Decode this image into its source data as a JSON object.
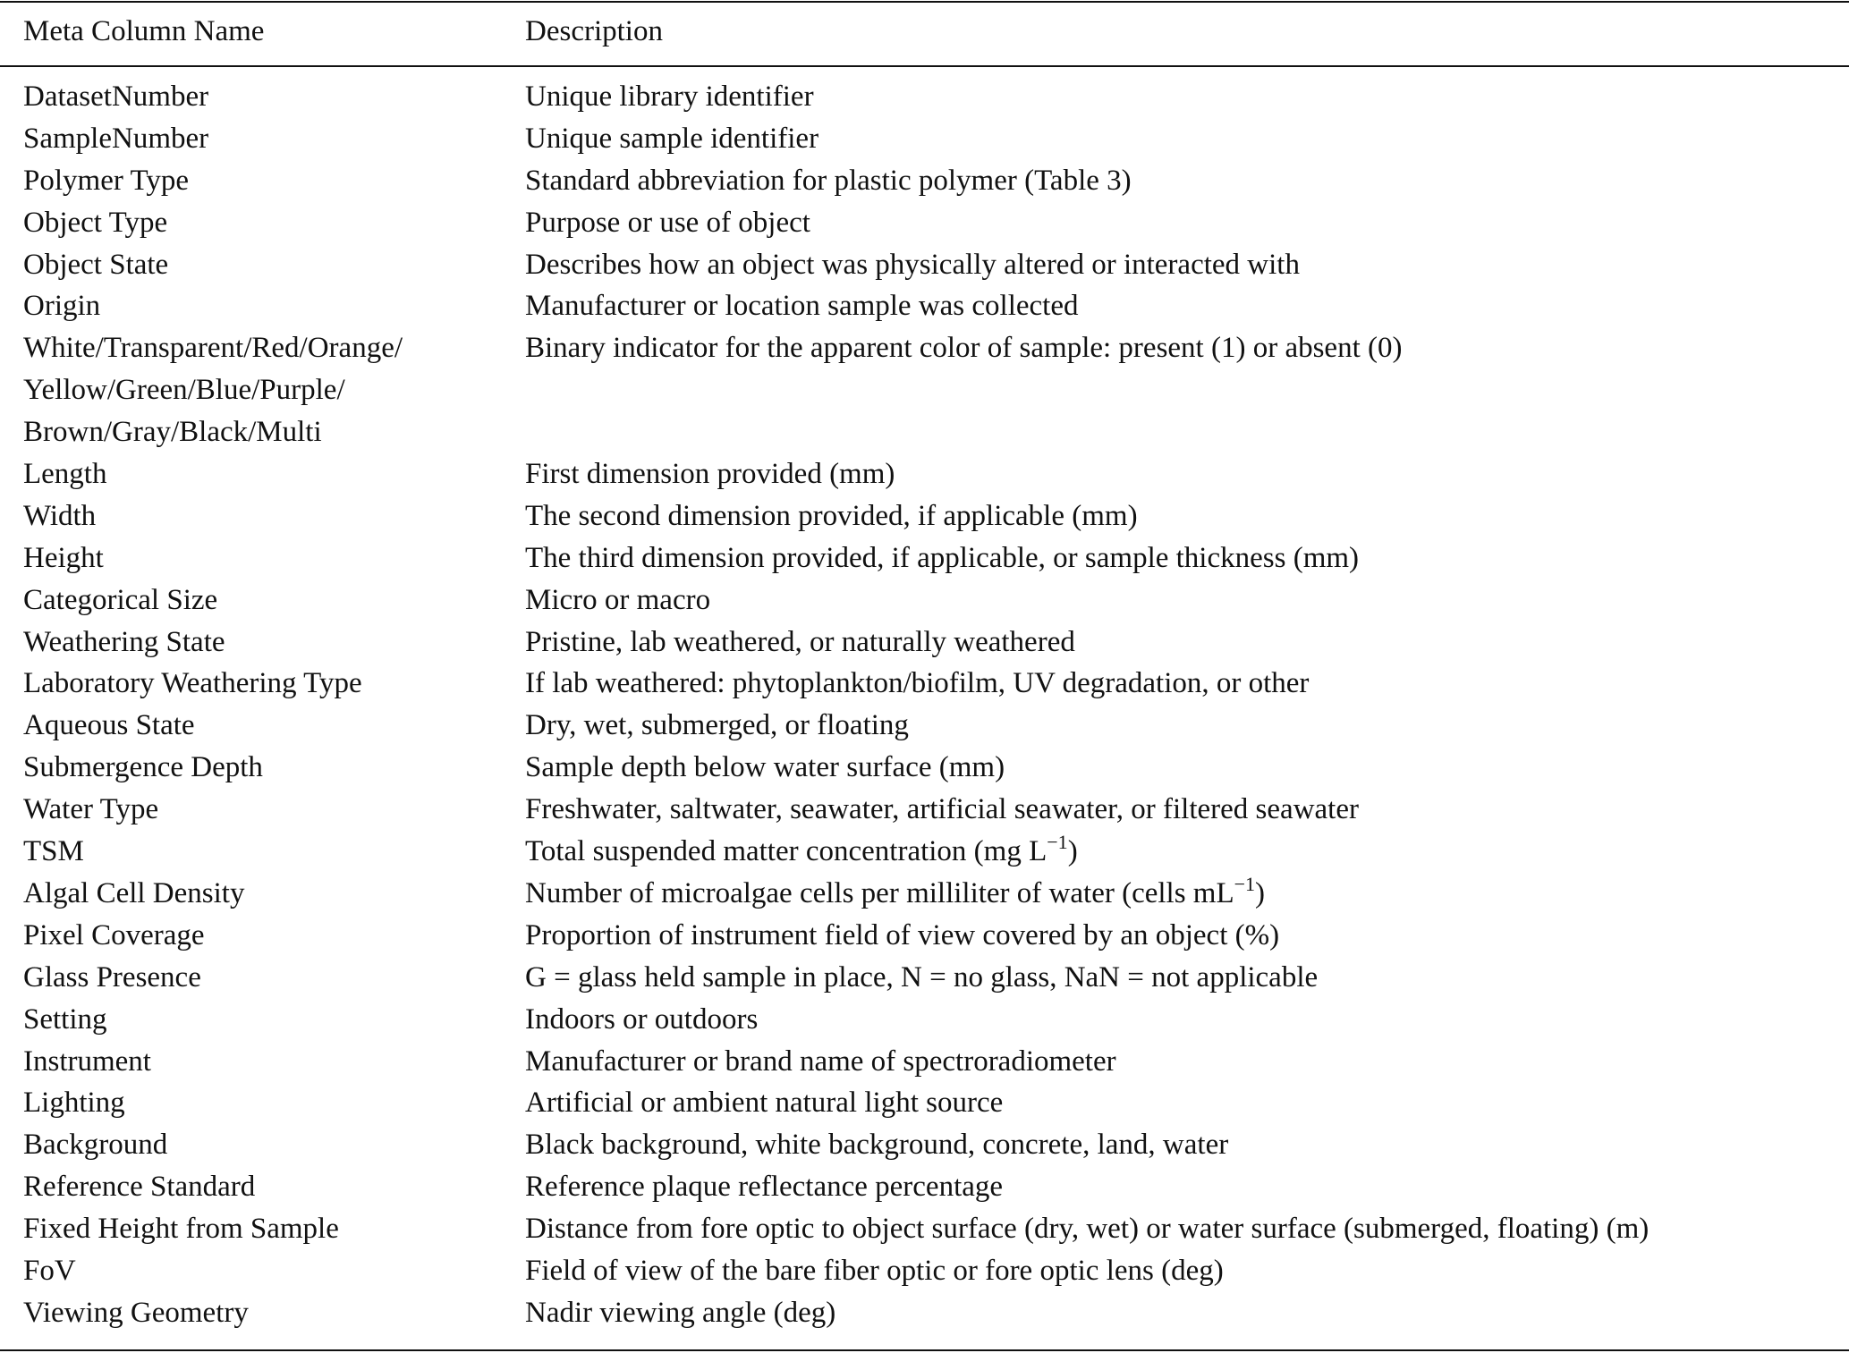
{
  "header": {
    "col1": "Meta Column Name",
    "col2": "Description"
  },
  "rows": [
    {
      "name": [
        "DatasetNumber"
      ],
      "desc": "Unique library identifier"
    },
    {
      "name": [
        "SampleNumber"
      ],
      "desc": "Unique sample identifier"
    },
    {
      "name": [
        "Polymer Type"
      ],
      "desc": "Standard abbreviation for plastic polymer (Table 3)"
    },
    {
      "name": [
        "Object Type"
      ],
      "desc": "Purpose or use of object"
    },
    {
      "name": [
        "Object State"
      ],
      "desc": "Describes how an object was physically altered or interacted with"
    },
    {
      "name": [
        "Origin"
      ],
      "desc": "Manufacturer or location sample was collected"
    },
    {
      "name": [
        "White/Transparent/Red/Orange/",
        "Yellow/Green/Blue/Purple/",
        "Brown/Gray/Black/Multi"
      ],
      "desc": "Binary indicator for the apparent color of sample: present (1) or absent (0)"
    },
    {
      "name": [
        "Length"
      ],
      "desc": "First dimension provided (mm)"
    },
    {
      "name": [
        "Width"
      ],
      "desc": "The second dimension provided, if applicable (mm)"
    },
    {
      "name": [
        "Height"
      ],
      "desc": "The third dimension provided, if applicable, or sample thickness (mm)"
    },
    {
      "name": [
        "Categorical Size"
      ],
      "desc": "Micro or macro"
    },
    {
      "name": [
        "Weathering State"
      ],
      "desc": "Pristine, lab weathered, or naturally weathered"
    },
    {
      "name": [
        "Laboratory Weathering Type"
      ],
      "desc": "If lab weathered: phytoplankton/biofilm, UV degradation, or other"
    },
    {
      "name": [
        "Aqueous State"
      ],
      "desc": "Dry, wet, submerged, or floating"
    },
    {
      "name": [
        "Submergence Depth"
      ],
      "desc": "Sample depth below water surface (mm)"
    },
    {
      "name": [
        "Water Type"
      ],
      "desc": "Freshwater, saltwater, seawater, artificial seawater, or filtered seawater"
    },
    {
      "name": [
        "TSM"
      ],
      "desc": "Total suspended matter concentration (mg L",
      "sup": "−1",
      "tail": ")"
    },
    {
      "name": [
        "Algal Cell Density"
      ],
      "desc": "Number of microalgae cells per milliliter of water (cells mL",
      "sup": "−1",
      "tail": ")"
    },
    {
      "name": [
        "Pixel Coverage"
      ],
      "desc": "Proportion of instrument field of view covered by an object (%)"
    },
    {
      "name": [
        "Glass Presence"
      ],
      "desc": "G = glass held sample in place, N = no glass, NaN = not applicable"
    },
    {
      "name": [
        "Setting"
      ],
      "desc": "Indoors or outdoors"
    },
    {
      "name": [
        "Instrument"
      ],
      "desc": "Manufacturer or brand name of spectroradiometer"
    },
    {
      "name": [
        "Lighting"
      ],
      "desc": "Artificial or ambient natural light source"
    },
    {
      "name": [
        "Background"
      ],
      "desc": "Black background, white background, concrete, land, water"
    },
    {
      "name": [
        "Reference Standard"
      ],
      "desc": "Reference plaque reflectance percentage"
    },
    {
      "name": [
        "Fixed Height from Sample"
      ],
      "desc": "Distance from fore optic to object surface (dry, wet) or water surface (submerged, floating) (m)"
    },
    {
      "name": [
        "FoV"
      ],
      "desc": "Field of view of the bare fiber optic or fore optic lens (deg)"
    },
    {
      "name": [
        "Viewing Geometry"
      ],
      "desc": "Nadir viewing angle (deg)"
    }
  ]
}
